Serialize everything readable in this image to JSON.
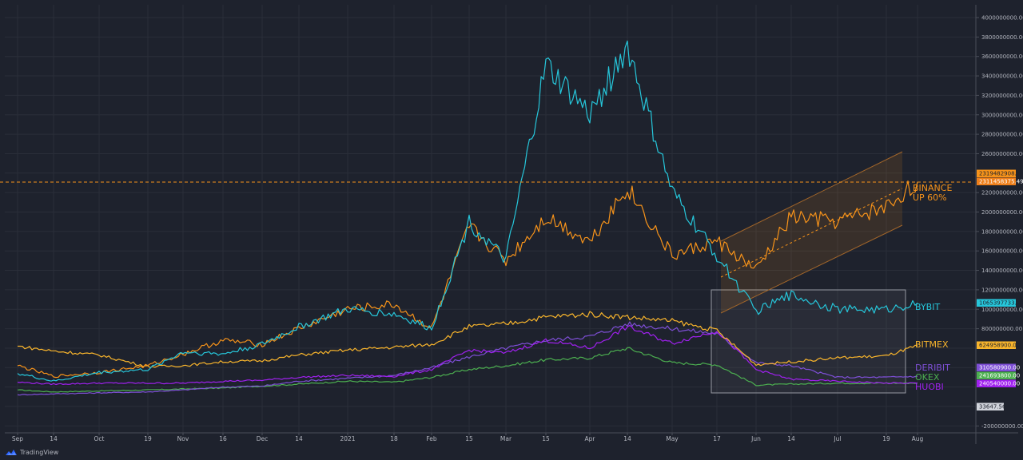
{
  "branding": {
    "logo_text": "TradingView",
    "logo_icon": "tradingview-cloud-icon"
  },
  "colors": {
    "background": "#1e222d",
    "grid": "#2a2e39",
    "axis": "#4a4e59",
    "binance": "#f7931a",
    "bybit": "#26c6da",
    "bitmex": "#f9b52c",
    "deribit": "#7e4fd6",
    "okex": "#4caf50",
    "huobi": "#a020f0",
    "price_tag_light": "#d1d4dc"
  },
  "y_axis": {
    "ticks": [
      "4000000000.00",
      "3800000000.00",
      "3600000000.00",
      "3400000000.00",
      "3200000000.00",
      "3000000000.00",
      "2800000000.00",
      "2600000000.00",
      "2200000000.00",
      "2000000000.00",
      "1800000000.00",
      "1600000000.00",
      "1400000000.00",
      "1200000000.00",
      "1000000000.00",
      "800000000.00",
      "-200000000.00"
    ]
  },
  "x_axis": {
    "ticks": [
      "Sep",
      "14",
      "Oct",
      "19",
      "Nov",
      "16",
      "Dec",
      "14",
      "2021",
      "18",
      "Feb",
      "15",
      "Mar",
      "15",
      "Apr",
      "14",
      "May",
      "17",
      "Jun",
      "14",
      "Jul",
      "19",
      "Aug"
    ]
  },
  "price_tags": [
    {
      "label": "2319482908.73",
      "series": "binance-upper"
    },
    {
      "label": "2311458375.49",
      "series": "binance"
    },
    {
      "label": "1065397733.00",
      "series": "bybit"
    },
    {
      "label": "624958900.00",
      "series": "bitmex"
    },
    {
      "label": "310580900.00",
      "series": "deribit"
    },
    {
      "label": "241693800.00",
      "series": "okex"
    },
    {
      "label": "240540000.00",
      "series": "huobi"
    },
    {
      "label": "33647.56",
      "series": "btc-price"
    }
  ],
  "annotations": {
    "binance_line1": "BINANCE",
    "binance_line2": "UP 60%",
    "bybit": "BYBIT",
    "bitmex": "BITMEX",
    "deribit": "DERIBIT",
    "okex": "OKEX",
    "huobi": "HUOBI"
  },
  "chart_data": {
    "type": "line",
    "title": "",
    "xlabel": "",
    "ylabel": "",
    "ylim": [
      -300000000,
      4100000000
    ],
    "grid": true,
    "legend_position": "right (inline labels)",
    "x": [
      "Sep 1",
      "Sep 14",
      "Oct 1",
      "Oct 19",
      "Nov 1",
      "Nov 16",
      "Dec 1",
      "Dec 14",
      "Jan 1 2021",
      "Jan 18",
      "Feb 1",
      "Feb 15",
      "Mar 1",
      "Mar 15",
      "Apr 1",
      "Apr 14",
      "May 1",
      "May 17",
      "Jun 1",
      "Jun 14",
      "Jul 1",
      "Jul 19",
      "Jul 25"
    ],
    "series": [
      {
        "name": "BINANCE",
        "color": "#f7931a",
        "values": [
          420000000,
          310000000,
          350000000,
          420000000,
          540000000,
          680000000,
          640000000,
          800000000,
          1000000000,
          1050000000,
          800000000,
          1850000000,
          1500000000,
          1950000000,
          1700000000,
          2250000000,
          1550000000,
          1700000000,
          1400000000,
          1950000000,
          1900000000,
          2050000000,
          2311458375
        ]
      },
      {
        "name": "BYBIT",
        "color": "#26c6da",
        "values": [
          340000000,
          260000000,
          350000000,
          380000000,
          560000000,
          540000000,
          640000000,
          820000000,
          1000000000,
          950000000,
          800000000,
          1900000000,
          1500000000,
          3500000000,
          3000000000,
          3700000000,
          2200000000,
          1550000000,
          980000000,
          1150000000,
          1000000000,
          1000000000,
          1065397733
        ]
      },
      {
        "name": "BITMEX",
        "color": "#f9b52c",
        "values": [
          620000000,
          570000000,
          530000000,
          410000000,
          420000000,
          460000000,
          470000000,
          530000000,
          580000000,
          610000000,
          640000000,
          820000000,
          850000000,
          920000000,
          950000000,
          920000000,
          880000000,
          780000000,
          430000000,
          460000000,
          500000000,
          520000000,
          624958900
        ]
      },
      {
        "name": "DERIBIT",
        "color": "#7e4fd6",
        "values": [
          120000000,
          130000000,
          140000000,
          150000000,
          170000000,
          200000000,
          210000000,
          260000000,
          290000000,
          320000000,
          400000000,
          510000000,
          600000000,
          680000000,
          720000000,
          850000000,
          800000000,
          750000000,
          450000000,
          420000000,
          300000000,
          300000000,
          310580900
        ]
      },
      {
        "name": "OKEX",
        "color": "#4caf50",
        "values": [
          170000000,
          150000000,
          160000000,
          170000000,
          180000000,
          190000000,
          210000000,
          230000000,
          260000000,
          250000000,
          300000000,
          380000000,
          420000000,
          480000000,
          500000000,
          600000000,
          450000000,
          430000000,
          220000000,
          230000000,
          240000000,
          240000000,
          241693800
        ]
      },
      {
        "name": "HUOBI",
        "color": "#a020f0",
        "values": [
          250000000,
          230000000,
          240000000,
          240000000,
          240000000,
          260000000,
          270000000,
          300000000,
          320000000,
          310000000,
          380000000,
          580000000,
          550000000,
          680000000,
          600000000,
          820000000,
          650000000,
          780000000,
          380000000,
          280000000,
          260000000,
          240000000,
          240540000
        ]
      }
    ],
    "annotations": [
      {
        "text": "BINANCE UP 60%",
        "type": "label"
      },
      {
        "type": "parallel_channel",
        "series": "BINANCE",
        "from": "May 19",
        "to": "Jul 25"
      },
      {
        "type": "rectangle",
        "from": "May 17",
        "to": "Jul 25",
        "y_range": [
          100000000,
          1200000000
        ]
      },
      {
        "type": "horizontal_dashed_line",
        "value": 2319482908.73
      }
    ]
  }
}
